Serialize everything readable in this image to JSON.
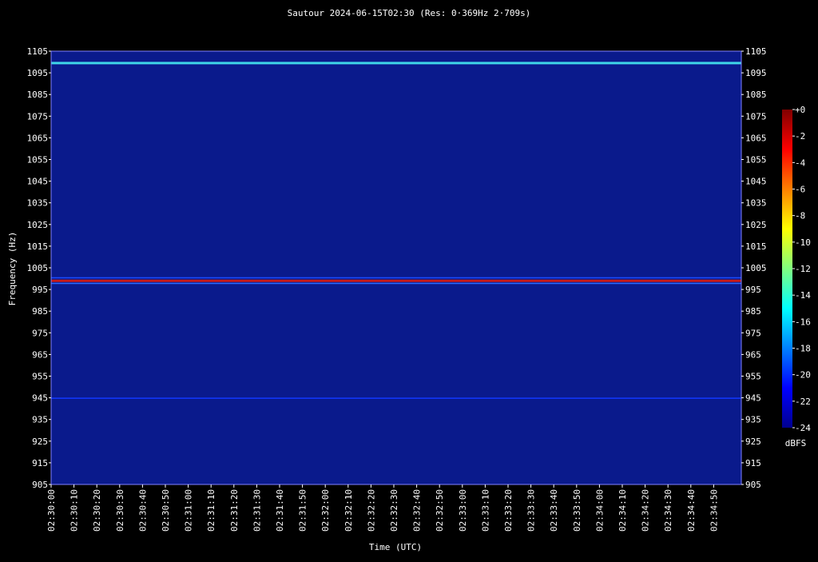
{
  "chart_data": {
    "type": "heatmap",
    "title": "Sautour 2024-06-15T02:30 (Res: 0·369Hz 2·709s)",
    "xlabel": "Time (UTC)",
    "ylabel": "Frequency (Hz)",
    "ylim": [
      905,
      1105
    ],
    "yticks": [
      1105,
      1095,
      1085,
      1075,
      1065,
      1055,
      1045,
      1035,
      1025,
      1015,
      1005,
      995,
      985,
      975,
      965,
      955,
      945,
      935,
      925,
      915,
      905
    ],
    "xticks": [
      "02:30:00",
      "02:30:10",
      "02:30:20",
      "02:30:30",
      "02:30:40",
      "02:30:50",
      "02:31:00",
      "02:31:10",
      "02:31:20",
      "02:31:30",
      "02:31:40",
      "02:31:50",
      "02:32:00",
      "02:32:10",
      "02:32:20",
      "02:32:30",
      "02:32:40",
      "02:32:50",
      "02:33:00",
      "02:33:10",
      "02:33:20",
      "02:33:30",
      "02:33:40",
      "02:33:50",
      "02:34:00",
      "02:34:10",
      "02:34:20",
      "02:34:30",
      "02:34:40",
      "02:34:50"
    ],
    "background_level_dbfs": -23,
    "features": [
      {
        "freq_hz": 1099.5,
        "level_dbfs": -15,
        "color": "#3fd6e8"
      },
      {
        "freq_hz": 999.0,
        "level_dbfs": -2,
        "color": "#c81a1a"
      },
      {
        "freq_hz": 1000.4,
        "level_dbfs": -20,
        "color": "#1a4aff"
      },
      {
        "freq_hz": 997.8,
        "level_dbfs": -19,
        "color": "#2d6bff"
      },
      {
        "freq_hz": 944.8,
        "level_dbfs": -21,
        "color": "#1238ff"
      }
    ],
    "colorbar": {
      "label": "dBFS",
      "ticks": [
        "+0",
        "-2",
        "-4",
        "-6",
        "-8",
        "-10",
        "-12",
        "-14",
        "-16",
        "-18",
        "-20",
        "-22",
        "-24"
      ],
      "range": [
        -24,
        0
      ],
      "colors": [
        "#00008f",
        "#0000ff",
        "#0080ff",
        "#00ffff",
        "#80ff80",
        "#ffff00",
        "#ff8000",
        "#ff0000",
        "#800000"
      ]
    }
  }
}
